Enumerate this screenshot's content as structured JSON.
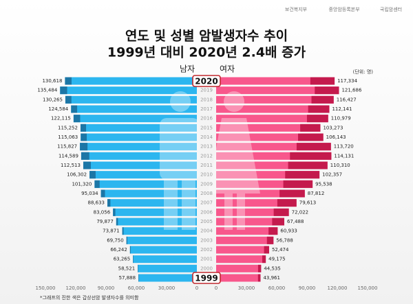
{
  "chart_data": {
    "type": "butterfly-bar",
    "logos": [
      "보건복지부",
      "중앙암등록본부",
      "국립암센터"
    ],
    "title": "연도 및 성별 암발생자수 추이",
    "subtitle": "1999년 대비 2020년 2.4배 증가",
    "unit": "(단위: 명)",
    "footnote": "*그래프의 진한 색은 갑상선암 발생자수를 의미함",
    "categories": [
      "2020",
      "2019",
      "2018",
      "2017",
      "2016",
      "2015",
      "2014",
      "2013",
      "2012",
      "2011",
      "2010",
      "2009",
      "2008",
      "2007",
      "2006",
      "2005",
      "2004",
      "2003",
      "2002",
      "2001",
      "2000",
      "1999"
    ],
    "xlim": [
      0,
      150000
    ],
    "xticks_male": [
      {
        "value": 150000,
        "label": "150,000"
      },
      {
        "value": 120000,
        "label": "120,000"
      },
      {
        "value": 90000,
        "label": "90,000"
      },
      {
        "value": 60000,
        "label": "60,000"
      },
      {
        "value": 30000,
        "label": "30,000"
      },
      0
    ],
    "xticks_female": [
      0,
      {
        "value": 30000,
        "label": "30,000"
      },
      {
        "value": 60000,
        "label": "60,000"
      },
      {
        "value": 90000,
        "label": "90,000"
      },
      {
        "value": 120000,
        "label": "120,000"
      },
      {
        "value": 150000,
        "label": "150,000"
      }
    ],
    "series": [
      {
        "name": "남자",
        "side": "left",
        "color": "#2cb6ef",
        "thyroid_color": "#1b76a6",
        "values": [
          130618,
          135484,
          130265,
          124584,
          122115,
          115252,
          115063,
          115827,
          114589,
          112513,
          106302,
          101320,
          95034,
          88633,
          83056,
          79877,
          73871,
          69750,
          66242,
          63265,
          58521,
          57888
        ],
        "value_labels": [
          "130,618",
          "135,484",
          "130,265",
          "124,584",
          "122,115",
          "115,252",
          "115,063",
          "115,827",
          "114,589",
          "112,513",
          "106,302",
          "101,320",
          "95,034",
          "88,633",
          "83,056",
          "79,877",
          "73,871",
          "69,750",
          "66,242",
          "63,265",
          "58,521",
          "57,888"
        ],
        "thyroid_values": [
          6500,
          7000,
          6000,
          6000,
          6500,
          5500,
          6000,
          7500,
          8000,
          7500,
          6000,
          5000,
          4000,
          3000,
          2300,
          1700,
          1300,
          900,
          700,
          500,
          400,
          400
        ]
      },
      {
        "name": "여자",
        "side": "right",
        "color": "#f8578c",
        "thyroid_color": "#c41a4d",
        "values": [
          117334,
          121686,
          116427,
          112141,
          110979,
          103273,
          106143,
          113720,
          114131,
          110310,
          102357,
          95538,
          87812,
          79613,
          72022,
          67488,
          60933,
          56788,
          52474,
          49175,
          44535,
          43961
        ],
        "value_labels": [
          "117,334",
          "121,686",
          "116,427",
          "112,141",
          "110,979",
          "103,273",
          "106,143",
          "113,720",
          "114,131",
          "110,310",
          "102,357",
          "95,538",
          "87,812",
          "79,613",
          "72,022",
          "67,488",
          "60,933",
          "56,788",
          "52,474",
          "49,175",
          "44,535",
          "43,961"
        ],
        "thyroid_values": [
          24000,
          24000,
          22000,
          21000,
          21000,
          20000,
          25000,
          34000,
          41000,
          39000,
          34000,
          29000,
          25000,
          19000,
          15000,
          12000,
          9000,
          6500,
          5000,
          3500,
          3000,
          2500
        ]
      }
    ]
  }
}
